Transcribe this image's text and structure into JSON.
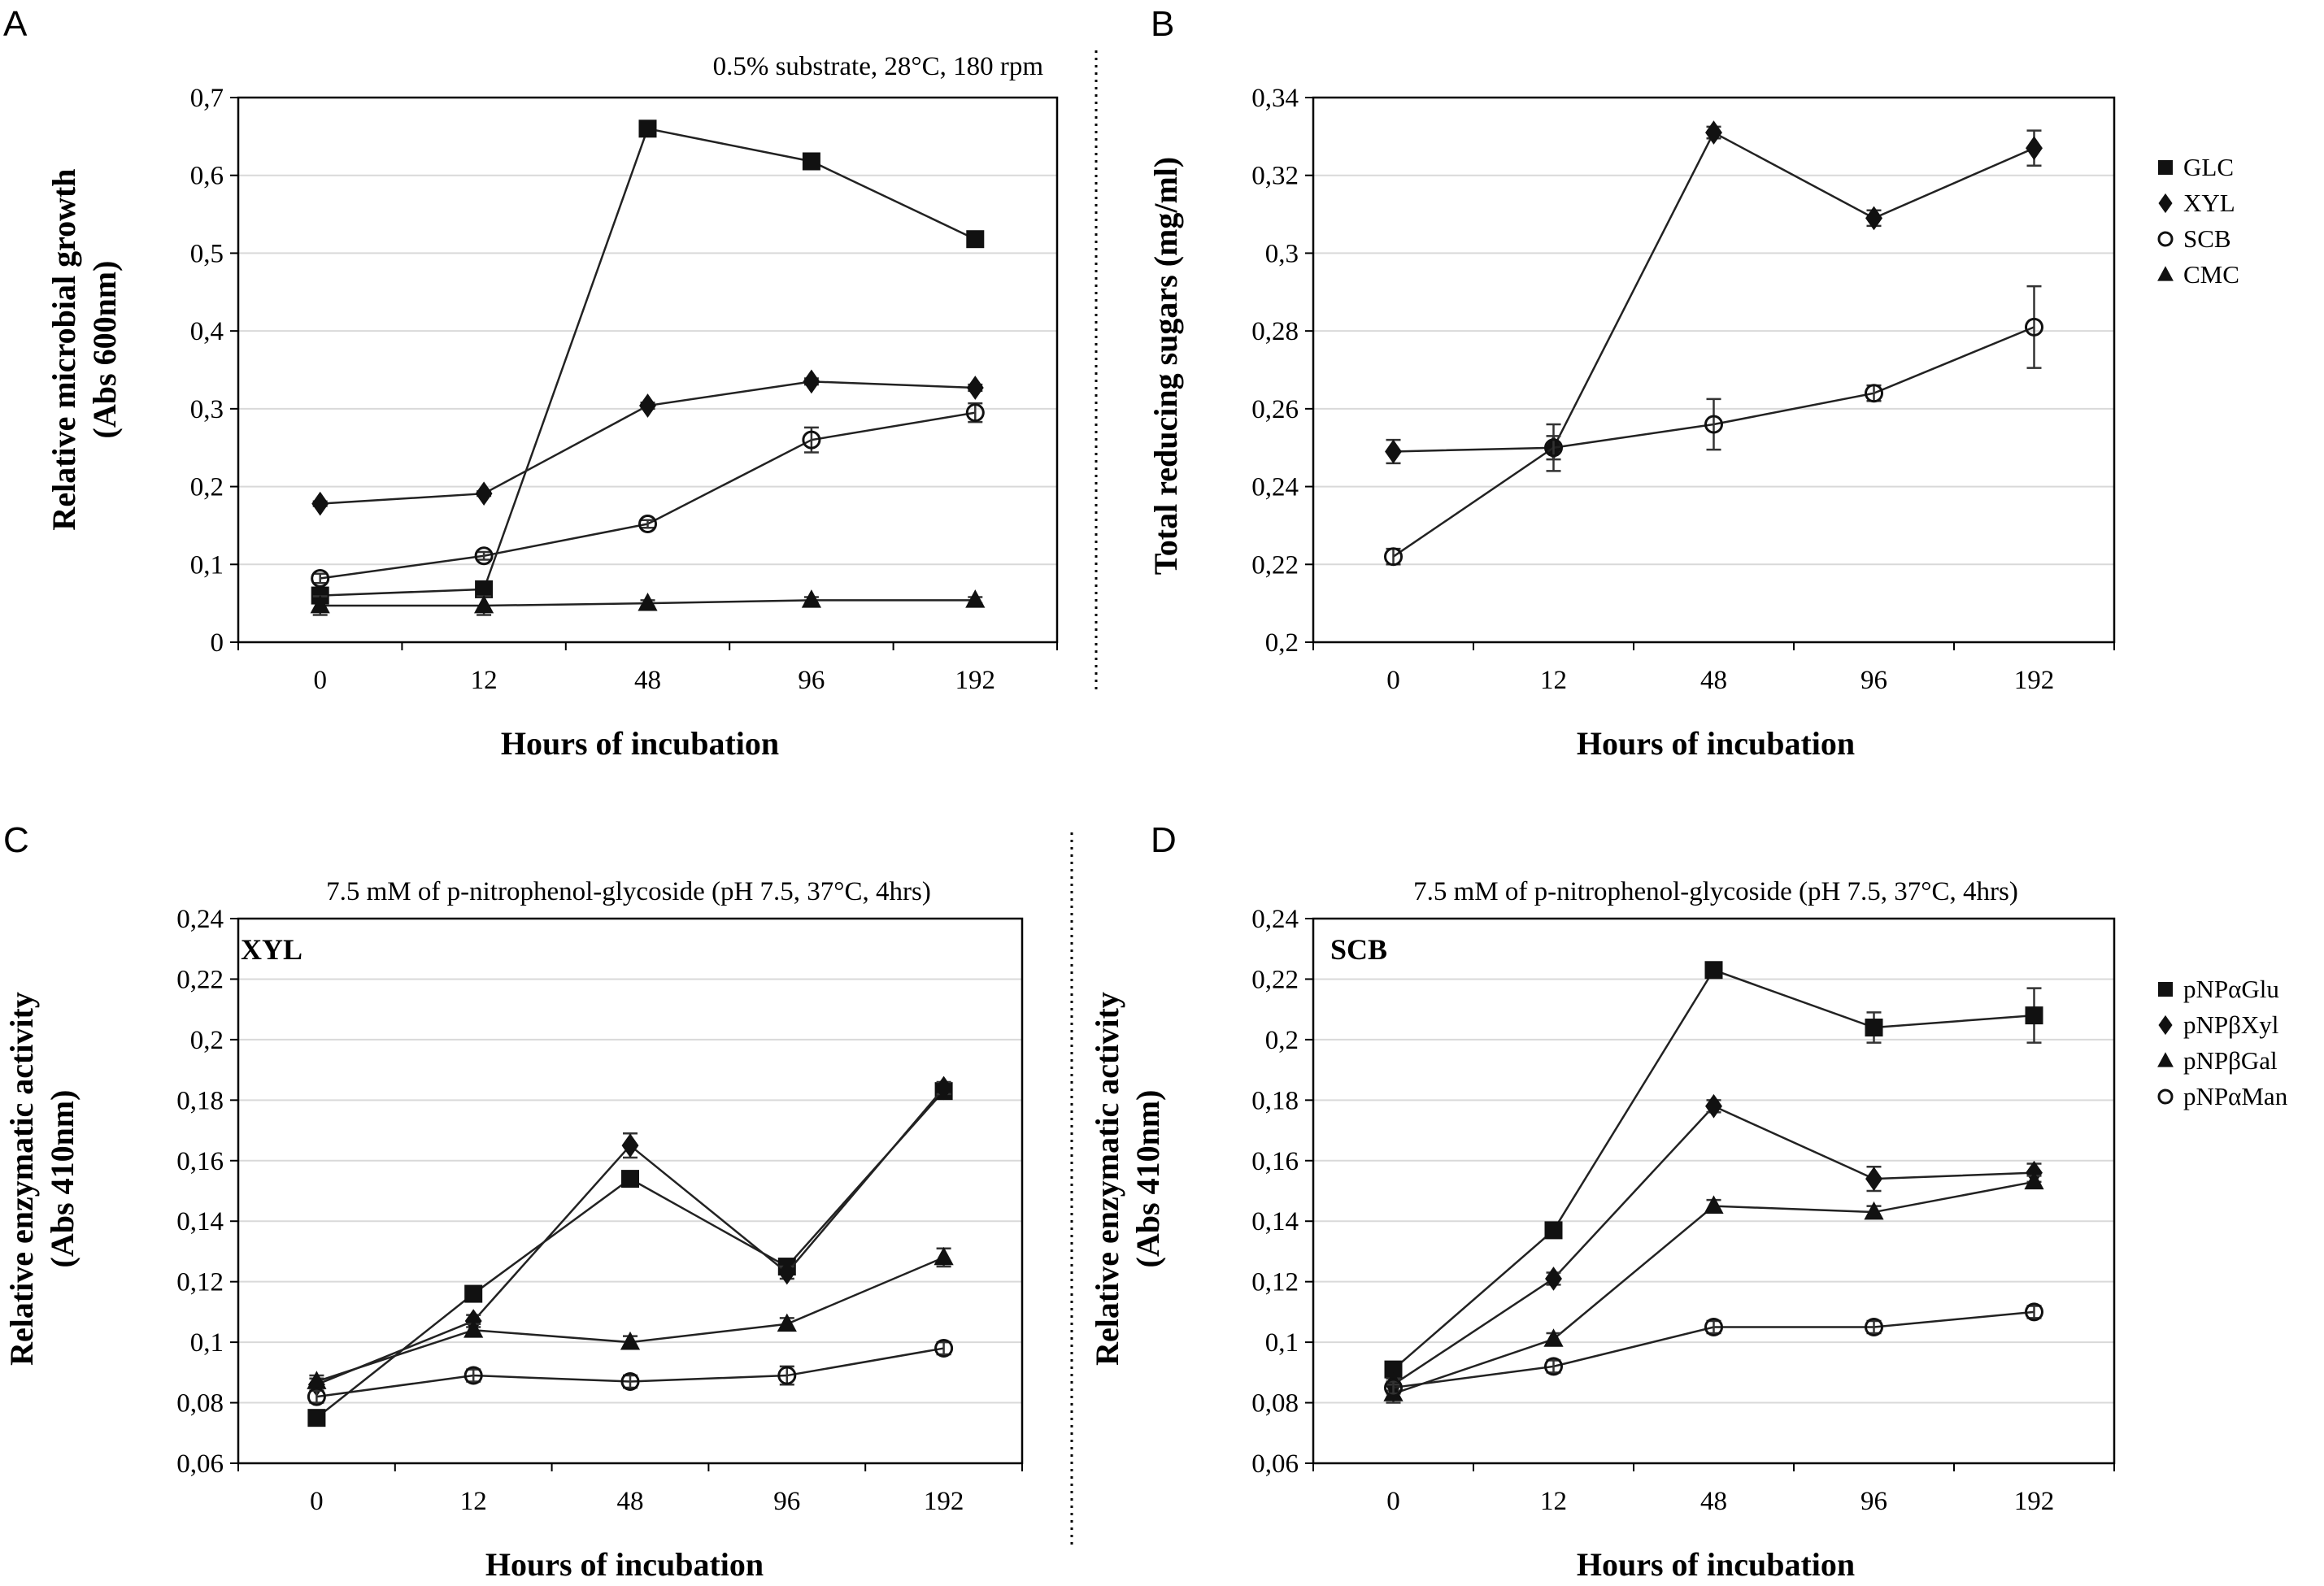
{
  "chart_data": [
    {
      "panel": "A",
      "type": "line",
      "title": "0.5% substrate, 28°C, 180 rpm",
      "xlabel": "Hours of incubation",
      "ylabel": [
        "Relative microbial growth",
        "(Abs 600nm)"
      ],
      "categories": [
        "0",
        "12",
        "48",
        "96",
        "192"
      ],
      "ylim": [
        0,
        0.7
      ],
      "yticks": [
        "0",
        "0,1",
        "0,2",
        "0,3",
        "0,4",
        "0,5",
        "0,6",
        "0,7"
      ],
      "grid": true,
      "series": [
        {
          "name": "GLC",
          "marker": "square",
          "values": [
            0.06,
            0.068,
            0.66,
            0.618,
            0.518
          ],
          "errors": [
            0.004,
            0.004,
            0.007,
            0.008,
            0.008
          ]
        },
        {
          "name": "XYL",
          "marker": "diamond",
          "values": [
            0.178,
            0.191,
            0.304,
            0.335,
            0.327
          ],
          "errors": [
            0.003,
            0.003,
            0.004,
            0.004,
            0.004
          ]
        },
        {
          "name": "SCB",
          "marker": "circle",
          "values": [
            0.082,
            0.111,
            0.152,
            0.26,
            0.295
          ],
          "errors": [
            0.006,
            0.005,
            0.005,
            0.016,
            0.012
          ]
        },
        {
          "name": "CMC",
          "marker": "triangle",
          "values": [
            0.047,
            0.047,
            0.05,
            0.054,
            0.054
          ],
          "errors": [
            0.012,
            0.012,
            0.004,
            0.004,
            0.004
          ]
        }
      ]
    },
    {
      "panel": "B",
      "type": "line",
      "title": "",
      "xlabel": "Hours of incubation",
      "ylabel": [
        "Total reducing sugars (mg/ml)"
      ],
      "categories": [
        "0",
        "12",
        "48",
        "96",
        "192"
      ],
      "ylim": [
        0.2,
        0.34
      ],
      "yticks": [
        "0,2",
        "0,22",
        "0,24",
        "0,26",
        "0,28",
        "0,3",
        "0,32",
        "0,34"
      ],
      "grid": true,
      "legend": [
        "GLC",
        "XYL",
        "SCB",
        "CMC"
      ],
      "series": [
        {
          "name": "XYL",
          "marker": "diamond",
          "values": [
            0.249,
            0.25,
            0.331,
            0.309,
            0.327
          ],
          "errors": [
            0.003,
            0.003,
            0.0015,
            0.002,
            0.0045
          ]
        },
        {
          "name": "SCB",
          "marker": "circle",
          "values": [
            0.222,
            0.25,
            0.256,
            0.264,
            0.281
          ],
          "errors": [
            0.002,
            0.006,
            0.0065,
            0.002,
            0.0105
          ]
        }
      ]
    },
    {
      "panel": "C",
      "type": "line",
      "title": "7.5 mM of p-nitrophenol-glycoside (pH 7.5, 37°C, 4hrs)",
      "inner_label": "XYL",
      "xlabel": "Hours of incubation",
      "ylabel": [
        "Relative enzymatic activity",
        "(Abs 410nm)"
      ],
      "categories": [
        "0",
        "12",
        "48",
        "96",
        "192"
      ],
      "ylim": [
        0.06,
        0.24
      ],
      "yticks": [
        "0,06",
        "0,08",
        "0,1",
        "0,12",
        "0,14",
        "0,16",
        "0,18",
        "0,2",
        "0,22",
        "0,24"
      ],
      "grid": true,
      "series": [
        {
          "name": "pNPαGlu",
          "marker": "square",
          "values": [
            0.075,
            0.116,
            0.154,
            0.125,
            0.183
          ],
          "errors": [
            0.002,
            0.002,
            0.002,
            0.002,
            0.002
          ]
        },
        {
          "name": "pNPβXyl",
          "marker": "diamond",
          "values": [
            0.086,
            0.107,
            0.165,
            0.123,
            0.184
          ],
          "errors": [
            0.002,
            0.002,
            0.004,
            0.002,
            0.002
          ]
        },
        {
          "name": "pNPβGal",
          "marker": "triangle",
          "values": [
            0.087,
            0.104,
            0.1,
            0.106,
            0.128
          ],
          "errors": [
            0.002,
            0.002,
            0.002,
            0.002,
            0.003
          ]
        },
        {
          "name": "pNPαMan",
          "marker": "circle",
          "values": [
            0.082,
            0.089,
            0.087,
            0.089,
            0.098
          ],
          "errors": [
            0.002,
            0.002,
            0.002,
            0.003,
            0.002
          ]
        }
      ]
    },
    {
      "panel": "D",
      "type": "line",
      "title": "7.5 mM of p-nitrophenol-glycoside  (pH 7.5, 37°C, 4hrs)",
      "inner_label": "SCB",
      "xlabel": "Hours of incubation",
      "ylabel": [
        "Relative enzymatic activity",
        "(Abs 410nm)"
      ],
      "categories": [
        "0",
        "12",
        "48",
        "96",
        "192"
      ],
      "ylim": [
        0.06,
        0.24
      ],
      "yticks": [
        "0,06",
        "0,08",
        "0,1",
        "0,12",
        "0,14",
        "0,16",
        "0,18",
        "0,2",
        "0,22",
        "0,24"
      ],
      "grid": true,
      "legend": [
        "pNPαGlu",
        "pNPβXyl",
        "pNPβGal",
        "pNPαMan"
      ],
      "series": [
        {
          "name": "pNPαGlu",
          "marker": "square",
          "values": [
            0.091,
            0.137,
            0.223,
            0.204,
            0.208
          ],
          "errors": [
            0.002,
            0.002,
            0.002,
            0.005,
            0.009
          ]
        },
        {
          "name": "pNPβXyl",
          "marker": "diamond",
          "values": [
            0.086,
            0.121,
            0.178,
            0.154,
            0.156
          ],
          "errors": [
            0.002,
            0.002,
            0.002,
            0.004,
            0.003
          ]
        },
        {
          "name": "pNPβGal",
          "marker": "triangle",
          "values": [
            0.083,
            0.101,
            0.145,
            0.143,
            0.153
          ],
          "errors": [
            0.003,
            0.002,
            0.002,
            0.002,
            0.002
          ]
        },
        {
          "name": "pNPαMan",
          "marker": "circle",
          "values": [
            0.085,
            0.092,
            0.105,
            0.105,
            0.11
          ],
          "errors": [
            0.002,
            0.002,
            0.002,
            0.002,
            0.002
          ]
        }
      ]
    }
  ],
  "legend_ab": [
    {
      "marker": "square",
      "label": "GLC"
    },
    {
      "marker": "diamond",
      "label": "XYL"
    },
    {
      "marker": "circle",
      "label": "SCB"
    },
    {
      "marker": "triangle",
      "label": "CMC"
    }
  ],
  "legend_cd": [
    {
      "marker": "square",
      "label": "pNPαGlu"
    },
    {
      "marker": "diamond",
      "label": "pNPβXyl"
    },
    {
      "marker": "triangle",
      "label": "pNPβGal"
    },
    {
      "marker": "circle",
      "label": "pNPαMan"
    }
  ],
  "colors": {
    "line": "#222222",
    "grid": "#d9d9d9",
    "marker": "#111111",
    "error": "#333333"
  }
}
